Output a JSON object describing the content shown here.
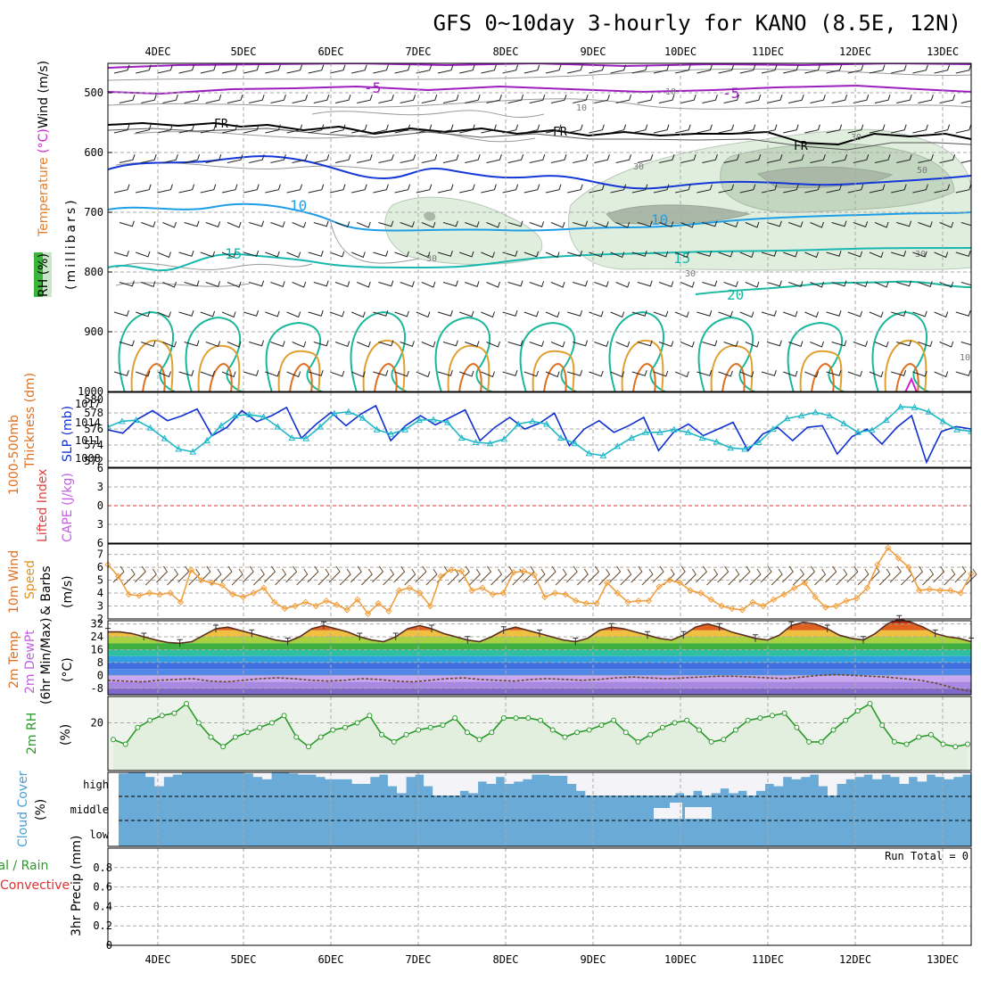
{
  "title": "GFS 0~10day 3-hourly for KANO (8.5E, 12N)",
  "run_total_label": "Run Total = 0",
  "colors": {
    "background": "#ffffff",
    "grid": "#aaaaaa",
    "thickness": "#1030d0",
    "slp": "#20b8c8",
    "wind10m": "#f0a040",
    "rh2m": "#2a9a2a",
    "cloud_fill": "#6aaad6",
    "cloud_clear": "#f4f4f8",
    "temp_fill": "#e4c060",
    "temp_hot": "#e06818"
  },
  "chart_data": [
    {
      "name": "upper-air",
      "type": "contour",
      "xlabel": "",
      "ylabel": "(millibars)",
      "side_labels": [
        "RH (%)",
        "Temperature (°C)",
        "Wind (m/s)"
      ],
      "y_ticks": [
        "500",
        "600",
        "700",
        "800",
        "900",
        "1000"
      ],
      "x_ticks": [
        "4DEC",
        "5DEC",
        "6DEC",
        "7DEC",
        "8DEC",
        "9DEC",
        "10DEC",
        "11DEC",
        "12DEC",
        "13DEC"
      ],
      "contour_labels": [
        "-5",
        "FR",
        "10",
        "15",
        "20",
        "30",
        "50"
      ]
    },
    {
      "name": "thickness-slp",
      "type": "line",
      "left_label": "1000-500mb Thickness (dm)",
      "right_label": "SLP (mb)",
      "y_ticks_left": [
        "580",
        "578",
        "576",
        "574",
        "572"
      ],
      "y_ticks_right": [
        "1017",
        "1014",
        "1011",
        "1008"
      ],
      "ylim_left": [
        571,
        580
      ],
      "ylim_right": [
        1005.7,
        1019.2
      ],
      "series": [
        {
          "name": "Thickness",
          "values": [
            575.5,
            575.1,
            576.8,
            577.8,
            576.6,
            577.2,
            578.0,
            574.8,
            575.8,
            577.8,
            576.5,
            577.2,
            578.2,
            574.5,
            576.2,
            577.6,
            576.0,
            577.4,
            578.4,
            574.2,
            576.0,
            577.2,
            576.1,
            577.0,
            577.9,
            574.2,
            575.8,
            577.0,
            575.6,
            576.3,
            577.5,
            573.6,
            575.6,
            576.6,
            575.2,
            576.0,
            577.0,
            573.0,
            575.2,
            576.2,
            574.8,
            575.6,
            576.4,
            573.0,
            575.0,
            575.8,
            574.2,
            575.8,
            576.0,
            572.6,
            574.7,
            575.6,
            573.8,
            575.8,
            577.2,
            571.6,
            575.3,
            575.9,
            575.6
          ]
        },
        {
          "name": "SLP",
          "values": [
            1013.0,
            1014.0,
            1014.2,
            1012.8,
            1010.9,
            1009.0,
            1008.5,
            1010.5,
            1013.2,
            1015.0,
            1015.2,
            1014.8,
            1013.0,
            1011.0,
            1010.9,
            1013.0,
            1015.4,
            1015.7,
            1014.6,
            1012.5,
            1011.7,
            1012.5,
            1014.2,
            1014.3,
            1013.8,
            1011.0,
            1010.2,
            1010.0,
            1010.8,
            1013.5,
            1014.0,
            1013.5,
            1011.0,
            1010.0,
            1008.2,
            1007.8,
            1009.5,
            1011.0,
            1012.0,
            1012.0,
            1012.5,
            1012.0,
            1011.0,
            1010.3,
            1009.2,
            1009.0,
            1010.2,
            1012.6,
            1014.5,
            1015.0,
            1015.6,
            1015.0,
            1013.6,
            1012.0,
            1012.4,
            1014.2,
            1016.6,
            1016.5,
            1015.7,
            1014.0,
            1012.5,
            1012.2
          ]
        }
      ]
    },
    {
      "name": "cape-lifted",
      "type": "line",
      "left_label": "Lifted Index",
      "right_label": "CAPE (J/kg)",
      "y_ticks": [
        "6",
        "3",
        "0",
        "3",
        "6"
      ],
      "ylim": [
        -6,
        6
      ]
    },
    {
      "name": "wind10m",
      "type": "line",
      "left_label": "10m Wind",
      "right_label": "Speed & Barbs (m/s)",
      "y_ticks": [
        "7",
        "6",
        "5",
        "4",
        "3",
        "2"
      ],
      "ylim": [
        2,
        7.8
      ],
      "series": [
        {
          "name": "Speed",
          "values": [
            6.2,
            5.3,
            3.9,
            3.8,
            4.0,
            3.9,
            4.0,
            3.3,
            5.8,
            5.0,
            4.8,
            4.6,
            3.9,
            3.7,
            4.0,
            4.4,
            3.3,
            2.8,
            3.0,
            3.3,
            3.0,
            3.4,
            3.1,
            2.7,
            3.5,
            2.4,
            3.2,
            2.6,
            4.2,
            4.4,
            4.0,
            3.0,
            5.3,
            5.8,
            5.7,
            4.2,
            4.4,
            3.9,
            4.0,
            5.6,
            5.7,
            5.4,
            3.7,
            4.0,
            3.9,
            3.4,
            3.2,
            3.2,
            4.8,
            4.0,
            3.3,
            3.4,
            3.4,
            4.5,
            5.0,
            4.8,
            4.2,
            4.0,
            3.5,
            3.0,
            2.8,
            2.7,
            3.3,
            3.0,
            3.5,
            3.9,
            4.4,
            4.8,
            3.7,
            2.9,
            3.0,
            3.4,
            3.6,
            4.4,
            6.2,
            7.5,
            6.7,
            6.0,
            4.2,
            4.3,
            4.2,
            4.2,
            4.0,
            5.5
          ]
        }
      ]
    },
    {
      "name": "temp2m",
      "type": "area",
      "left_label": "2m Temp 2m DewPt",
      "right_label": "(6hr Min/Max) (°C)",
      "y_ticks": [
        "32",
        "24",
        "16",
        "8",
        "0",
        "-8"
      ],
      "ylim": [
        -12,
        34
      ],
      "series": [
        {
          "name": "Temp",
          "values": [
            27,
            27,
            26,
            24,
            22,
            20.5,
            20,
            21,
            25,
            29,
            30,
            28,
            26,
            24,
            22,
            21,
            24,
            29,
            31,
            29,
            27,
            24,
            22,
            21,
            24,
            29,
            31,
            29,
            26,
            24,
            22,
            21,
            24,
            28,
            30,
            28,
            26,
            24,
            22,
            21,
            23,
            28,
            30,
            29,
            27,
            25,
            23,
            22,
            25,
            30,
            32,
            30,
            27,
            25,
            23,
            22,
            25,
            31,
            33,
            32,
            29,
            25,
            23,
            22,
            26,
            32,
            35,
            33,
            30,
            26,
            24,
            23,
            21
          ]
        },
        {
          "name": "DewPt",
          "values": [
            -3,
            -3.5,
            -4,
            -3,
            -2.5,
            -2,
            -3.5,
            -4,
            -3,
            -2,
            -1.5,
            -2,
            -3,
            -3.5,
            -3,
            -2,
            -2.5,
            -3.5,
            -4,
            -3,
            -2,
            -1.5,
            -2.5,
            -3,
            -3.5,
            -2.5,
            -2,
            -2.5,
            -3,
            -2.5,
            -1.5,
            -1,
            -1.5,
            -2,
            -1.5,
            -1,
            -0.5,
            -0.5,
            -1,
            -1.5,
            -2,
            -1,
            0,
            0.5,
            0,
            -0.5,
            -1,
            -2,
            -3,
            -5,
            -8,
            -10
          ]
        }
      ]
    },
    {
      "name": "rh2m",
      "type": "area",
      "left_label": "2m RH",
      "right_label": "(%)",
      "y_ticks": [
        "20"
      ],
      "ylim": [
        0,
        31
      ],
      "series": [
        {
          "name": "RH",
          "values": [
            13,
            11,
            18,
            21,
            23,
            24,
            28,
            20,
            14,
            10,
            14,
            16,
            18,
            20,
            23,
            14,
            10,
            14,
            17,
            18,
            20,
            23,
            15,
            12,
            15,
            17,
            18,
            19,
            22,
            16,
            13,
            16,
            22,
            22,
            22,
            21,
            17,
            14,
            16,
            17,
            19,
            21,
            16,
            12,
            15,
            18,
            20,
            21,
            17,
            12,
            13,
            17,
            21,
            22,
            23,
            24,
            18,
            12,
            12,
            17,
            21,
            25,
            28,
            19,
            12,
            11,
            14,
            15,
            11,
            10,
            11
          ]
        }
      ]
    },
    {
      "name": "cloud-cover",
      "type": "bar",
      "left_label": "Cloud Cover",
      "right_label": "(%)",
      "y_ticks": [
        "high",
        "middle",
        "low"
      ],
      "high_clear_fraction": [
        0.05,
        0,
        0,
        0.2,
        0.6,
        0.2,
        0.1,
        0,
        0,
        0,
        0,
        0,
        0,
        0,
        0.05,
        0.2,
        0.3,
        0,
        0,
        0.05,
        0.1,
        0.1,
        0.2,
        0.3,
        0.3,
        0.3,
        0.5,
        0.5,
        0.2,
        0.1,
        0.6,
        0.9,
        0.2,
        0.1,
        0.6,
        1.0,
        1.0,
        1.0,
        0.8,
        0.9,
        0.4,
        0.5,
        0.2,
        0.5,
        0.4,
        0.3,
        0.1,
        0.1,
        0.15,
        0.15,
        0.5,
        0.8,
        1.0,
        1.0,
        1.0,
        1.0,
        1.0,
        1.0,
        1.0,
        1.0,
        1.0,
        1.0,
        0.9,
        1.0,
        0.8,
        1.0,
        0.9,
        0.7,
        0.9,
        0.8,
        1.0,
        0.8,
        0.5,
        0.6,
        0.2,
        0.3,
        0.2,
        0.1,
        0.6,
        1.0,
        0.5,
        0.3,
        0.2,
        0.1,
        0.3,
        0.1,
        0.2,
        0.5,
        0.2,
        0.4,
        0.1,
        0.2,
        0.3,
        0.2,
        0.1
      ]
    },
    {
      "name": "precip",
      "type": "bar",
      "left_label": "Total / Rain Convective",
      "right_label": "3hr Precip (mm)",
      "y_ticks": [
        "0.8",
        "0.6",
        "0.4",
        "0.2",
        "0"
      ],
      "ylim": [
        0,
        1
      ],
      "values": []
    }
  ]
}
